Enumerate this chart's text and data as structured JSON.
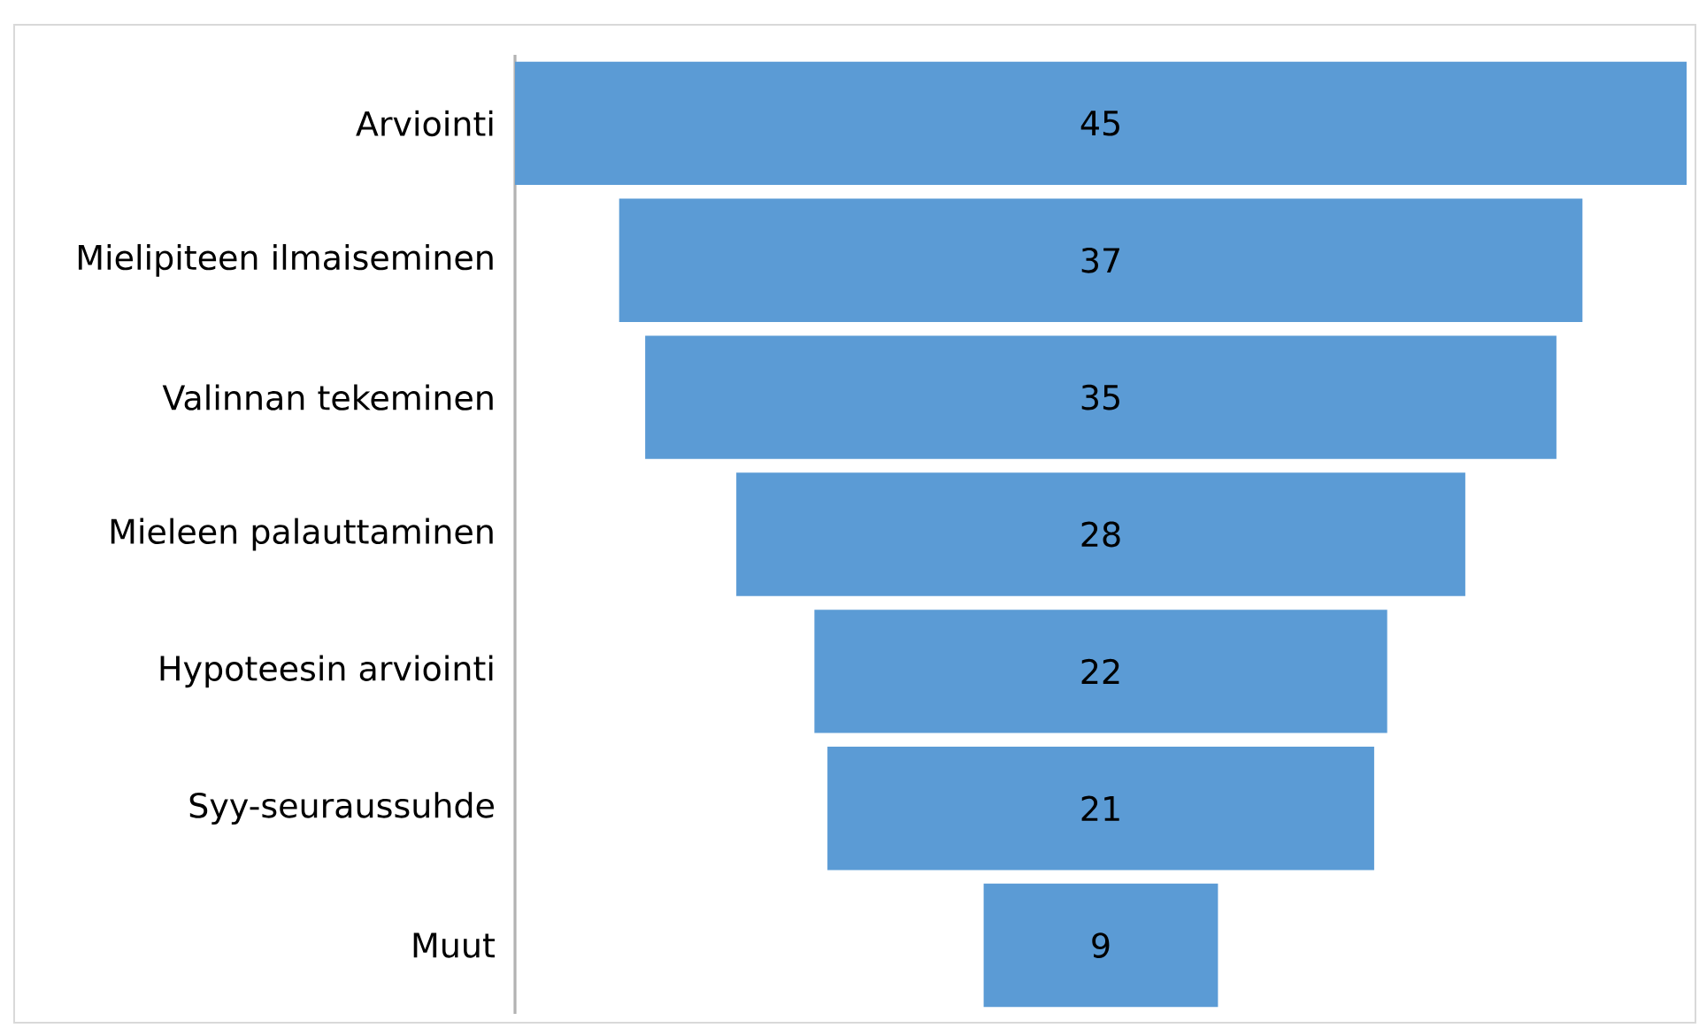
{
  "chart_data": {
    "type": "other",
    "categories": [
      "Arviointi",
      "Mielipiteen ilmaiseminen",
      "Valinnan tekeminen",
      "Mieleen palauttaminen",
      "Hypoteesin arviointi",
      "Syy-seuraussuhde",
      "Muut"
    ],
    "values": [
      45,
      37,
      35,
      28,
      22,
      21,
      9
    ],
    "color": "#5b9bd5",
    "data_labels": true
  }
}
